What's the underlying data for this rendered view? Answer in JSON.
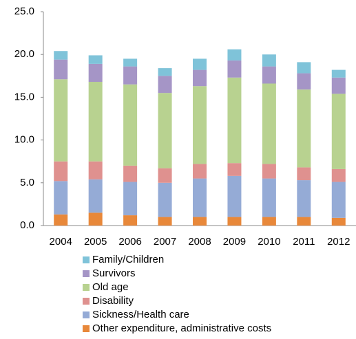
{
  "chart_data": {
    "type": "stacked_bar",
    "categories": [
      "2004",
      "2005",
      "2006",
      "2007",
      "2008",
      "2009",
      "2010",
      "2011",
      "2012"
    ],
    "series": [
      {
        "name": "Other expenditure, administrative costs",
        "color": "#e8883a",
        "values": [
          1.3,
          1.5,
          1.2,
          1.0,
          1.0,
          1.0,
          1.0,
          1.0,
          0.9
        ]
      },
      {
        "name": "Sickness/Health care",
        "color": "#95abd6",
        "values": [
          3.9,
          3.9,
          3.9,
          4.0,
          4.5,
          4.8,
          4.5,
          4.3,
          4.2
        ]
      },
      {
        "name": "Disability",
        "color": "#df918f",
        "values": [
          2.3,
          2.1,
          1.9,
          1.7,
          1.7,
          1.5,
          1.7,
          1.5,
          1.5
        ]
      },
      {
        "name": "Old age",
        "color": "#b8d290",
        "values": [
          9.6,
          9.3,
          9.5,
          8.8,
          9.1,
          10.0,
          9.4,
          9.1,
          8.8
        ]
      },
      {
        "name": "Survivors",
        "color": "#a595c6",
        "values": [
          2.3,
          2.1,
          2.1,
          2.0,
          1.9,
          2.0,
          2.0,
          1.9,
          1.9
        ]
      },
      {
        "name": "Family/Children",
        "color": "#7fc3d9",
        "values": [
          1.0,
          1.0,
          0.9,
          0.9,
          1.3,
          1.3,
          1.4,
          1.3,
          0.9
        ]
      }
    ],
    "ylim": [
      0,
      25
    ],
    "yticks": [
      {
        "value": 0,
        "label": "0.0"
      },
      {
        "value": 5,
        "label": "5.0"
      },
      {
        "value": 10,
        "label": "10.0"
      },
      {
        "value": 15,
        "label": "15.0"
      },
      {
        "value": 20,
        "label": "20.0"
      },
      {
        "value": 25,
        "label": "25.0"
      }
    ],
    "grid": false
  }
}
